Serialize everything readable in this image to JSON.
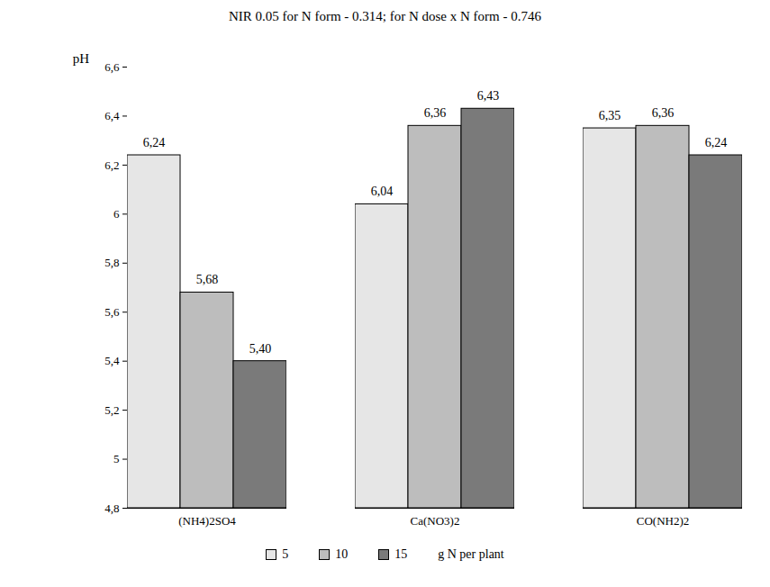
{
  "chart_data": {
    "type": "bar",
    "title": "NIR 0.05 for N form - 0.314; for N dose x N form - 0.746",
    "y_label": "pH",
    "categories": [
      "(NH4)2SO4",
      "Ca(NO3)2",
      "CO(NH2)2"
    ],
    "series": [
      {
        "name": "5",
        "color": "#e6e6e6",
        "values": [
          6.24,
          6.04,
          6.35
        ],
        "value_labels": [
          "6,24",
          "6,04",
          "6,35"
        ]
      },
      {
        "name": "10",
        "color": "#bdbdbd",
        "values": [
          5.68,
          6.36,
          6.36
        ],
        "value_labels": [
          "5,68",
          "6,36",
          "6,36"
        ]
      },
      {
        "name": "15",
        "color": "#7a7a7a",
        "values": [
          5.4,
          6.43,
          6.24
        ],
        "value_labels": [
          "5,40",
          "6,43",
          "6,24"
        ]
      }
    ],
    "annotations": [
      "g N per plant"
    ],
    "ylim": [
      4.8,
      6.6
    ],
    "yticks": [
      {
        "value": 4.8,
        "label": "4,8"
      },
      5,
      {
        "value": 5.2,
        "label": "5,2"
      },
      {
        "value": 5.4,
        "label": "5,4"
      },
      {
        "value": 5.6,
        "label": "5,6"
      },
      {
        "value": 5.8,
        "label": "5,8"
      },
      6,
      {
        "value": 6.2,
        "label": "6,2"
      },
      {
        "value": 6.4,
        "label": "6,4"
      },
      {
        "value": 6.6,
        "label": "6,6"
      }
    ],
    "grid": false,
    "legend": "bottom",
    "data_labels": true
  }
}
